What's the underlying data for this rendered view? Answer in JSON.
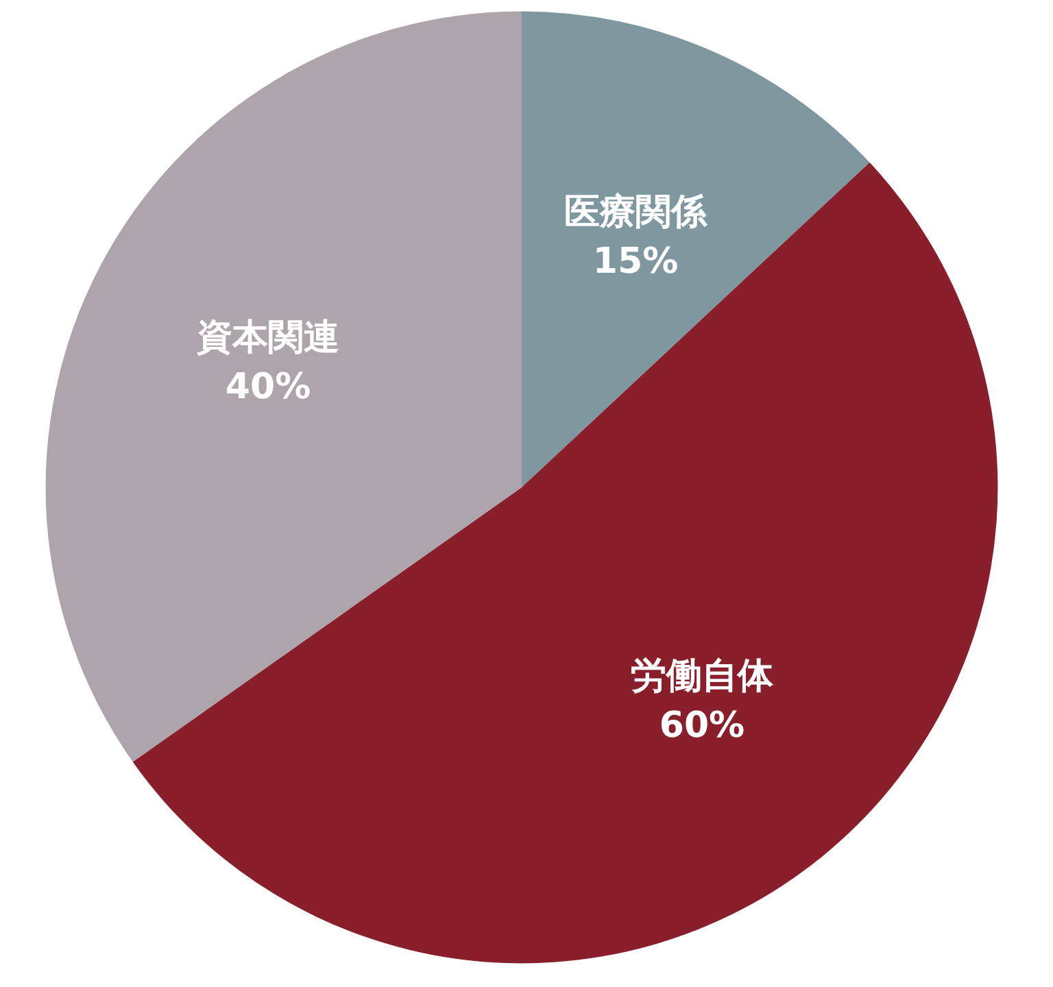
{
  "chart_data": {
    "type": "pie",
    "categories": [
      "医療関係",
      "労働自体",
      "資本関連"
    ],
    "values": [
      15,
      60,
      40
    ],
    "value_labels": [
      "15%",
      "60%",
      "40%"
    ],
    "colors": [
      "#7f979f",
      "#8a1f2c",
      "#aea4ab"
    ]
  }
}
